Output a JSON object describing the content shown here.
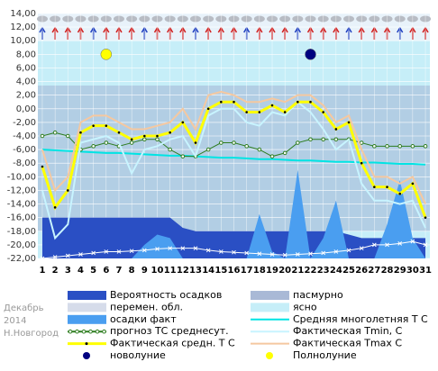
{
  "chart_data": {
    "type": "line",
    "notes": [
      "Декабрь",
      "2014",
      "Н.Новгород"
    ],
    "x": [
      1,
      2,
      3,
      4,
      5,
      6,
      7,
      8,
      9,
      10,
      11,
      12,
      13,
      14,
      15,
      16,
      17,
      18,
      19,
      20,
      21,
      22,
      23,
      24,
      25,
      26,
      27,
      28,
      29,
      30,
      31
    ],
    "xlim": [
      0.65,
      31.35
    ],
    "ylim": [
      -22,
      14
    ],
    "yticks": [
      {
        "value": 14,
        "label": "14,00"
      },
      {
        "value": 12,
        "label": "12,00"
      },
      {
        "value": 10,
        "label": "10,00"
      },
      {
        "value": 8,
        "label": "8,00"
      },
      {
        "value": 6,
        "label": "6,00"
      },
      {
        "value": 4,
        "label": "4,00"
      },
      {
        "value": 2,
        "label": "2,00"
      },
      {
        "value": 0,
        "label": "0,00"
      },
      {
        "value": -2,
        "label": "-2,00"
      },
      {
        "value": -4,
        "label": "-4,00"
      },
      {
        "value": -6,
        "label": "-6,00"
      },
      {
        "value": -8,
        "label": "-8,00"
      },
      {
        "value": -10,
        "label": "-10,00"
      },
      {
        "value": -12,
        "label": "-12,00"
      },
      {
        "value": -14,
        "label": "-14,00"
      },
      {
        "value": -16,
        "label": "-16,00"
      },
      {
        "value": -18,
        "label": "-18,00"
      },
      {
        "value": -20,
        "label": "-20,00"
      },
      {
        "value": -22,
        "label": "-22,00"
      }
    ],
    "grid": true,
    "bands": [
      {
        "name": "перемен. обл.",
        "color": "#d6dcea"
      },
      {
        "name": "пасмурно",
        "color": "#a9b9d6"
      },
      {
        "name": "ясно",
        "color": "#c6eef8"
      }
    ],
    "series": [
      {
        "name": "Вероятность осадков",
        "color": "#2a4fc4",
        "kind": "area",
        "values": [
          -16,
          -16,
          -16,
          -16,
          -16,
          -16,
          -16,
          -16,
          -16,
          -16,
          -16,
          -17.5,
          -18,
          -18,
          -18,
          -18,
          -18,
          -18,
          -18,
          -18,
          -18,
          -18,
          -18,
          -18,
          -18.5,
          -19,
          -19,
          -19,
          -19,
          -19,
          -19
        ]
      },
      {
        "name": "осадки факт",
        "color": "#4a9ef0",
        "kind": "area",
        "values": [
          -22,
          -22,
          -22,
          -22,
          -22,
          -22,
          -22,
          -22,
          -20,
          -18.5,
          -19,
          -22,
          -22,
          -22,
          -22,
          -22,
          -22,
          -15.5,
          -21,
          -22,
          -9,
          -22,
          -19,
          -13.5,
          -22,
          -22,
          -22,
          -17,
          -10.5,
          -19,
          -22
        ]
      },
      {
        "name": "Средняя многолетняя Т С",
        "color": "#00e4e4",
        "kind": "line",
        "values": [
          -6,
          -6.1,
          -6.2,
          -6.3,
          -6.4,
          -6.5,
          -6.5,
          -6.6,
          -6.7,
          -6.8,
          -6.9,
          -6.9,
          -7,
          -7.1,
          -7.2,
          -7.2,
          -7.3,
          -7.4,
          -7.4,
          -7.5,
          -7.6,
          -7.6,
          -7.7,
          -7.8,
          -7.8,
          -7.9,
          -7.9,
          -8,
          -8.1,
          -8.1,
          -8.2
        ]
      },
      {
        "name": "прогноз ТС среднесут.",
        "color": "#2e7d20",
        "kind": "dotted",
        "values": [
          -4,
          -3.5,
          -4,
          -6,
          -5.5,
          -5,
          -5.5,
          -5,
          -4.5,
          -4.5,
          -6,
          -7,
          -7,
          -6,
          -5,
          -5,
          -5.5,
          -6,
          -7,
          -6.5,
          -5,
          -4.5,
          -4.5,
          -4.5,
          -4.5,
          -5,
          -5.5,
          -5.5,
          -5.5,
          -5.5,
          -5.5
        ]
      },
      {
        "name": "Фактическая Tmin, С",
        "color": "#c8f4ff",
        "kind": "line",
        "values": [
          -12,
          -19,
          -17,
          -5,
          -4.5,
          -4,
          -5,
          -9.5,
          -6,
          -5.5,
          -4.5,
          -4,
          -7,
          -1,
          0,
          0,
          -2,
          -2.5,
          -0.5,
          -1,
          1,
          -0.5,
          -3,
          -6,
          -4.5,
          -11,
          -13.5,
          -13.5,
          -14,
          -13.5,
          -17.5
        ]
      },
      {
        "name": "Фактическая Tmax С",
        "color": "#f5c8a0",
        "kind": "line",
        "values": [
          -6,
          -12,
          -10,
          -2,
          -1,
          -1,
          -2,
          -3,
          -3,
          -2.5,
          -2,
          0,
          -3,
          2,
          2.5,
          2,
          1,
          1,
          1.5,
          1,
          2,
          2,
          0.5,
          -2,
          -1,
          -6,
          -10,
          -10,
          -11,
          -10,
          -14
        ]
      },
      {
        "name": "Фактическая средн. Т С",
        "color": "#ffff00",
        "kind": "thick",
        "values": [
          -8.5,
          -14.5,
          -12,
          -3.5,
          -2.5,
          -2.5,
          -3.5,
          -4.5,
          -4,
          -4,
          -3.5,
          -2,
          -5,
          0,
          1,
          1,
          -0.5,
          -0.5,
          0.5,
          -0.5,
          1,
          1,
          -0.5,
          -3,
          -2,
          -8,
          -11.5,
          -11.5,
          -12.5,
          -11,
          -16
        ]
      },
      {
        "color": "#ffffff",
        "kind": "cross",
        "values": [
          -22,
          -21.8,
          -21.6,
          -21.4,
          -21.2,
          -21,
          -21,
          -20.9,
          -20.8,
          -20.6,
          -20.5,
          -20.5,
          -20.5,
          -20.8,
          -21,
          -21.1,
          -21.2,
          -21.3,
          -21.4,
          -21.5,
          -21.4,
          -21.3,
          -21.2,
          -21,
          -20.8,
          -20.5,
          -20,
          -20,
          -19.8,
          -19.5,
          -20
        ]
      },
      {
        "name": "новолуние",
        "color": "#000080",
        "kind": "marker",
        "values": [
          null,
          null,
          null,
          null,
          null,
          null,
          null,
          null,
          null,
          null,
          null,
          null,
          null,
          null,
          null,
          null,
          null,
          null,
          null,
          null,
          null,
          8,
          null,
          null,
          null,
          null,
          null,
          null,
          null,
          null,
          null
        ]
      },
      {
        "name": "Полнолуние",
        "color": "#ffff00",
        "kind": "marker",
        "values": [
          null,
          null,
          null,
          null,
          null,
          8,
          null,
          null,
          null,
          null,
          null,
          null,
          null,
          null,
          null,
          null,
          null,
          null,
          null,
          null,
          null,
          null,
          null,
          null,
          null,
          null,
          null,
          null,
          null,
          null,
          null
        ]
      }
    ]
  }
}
